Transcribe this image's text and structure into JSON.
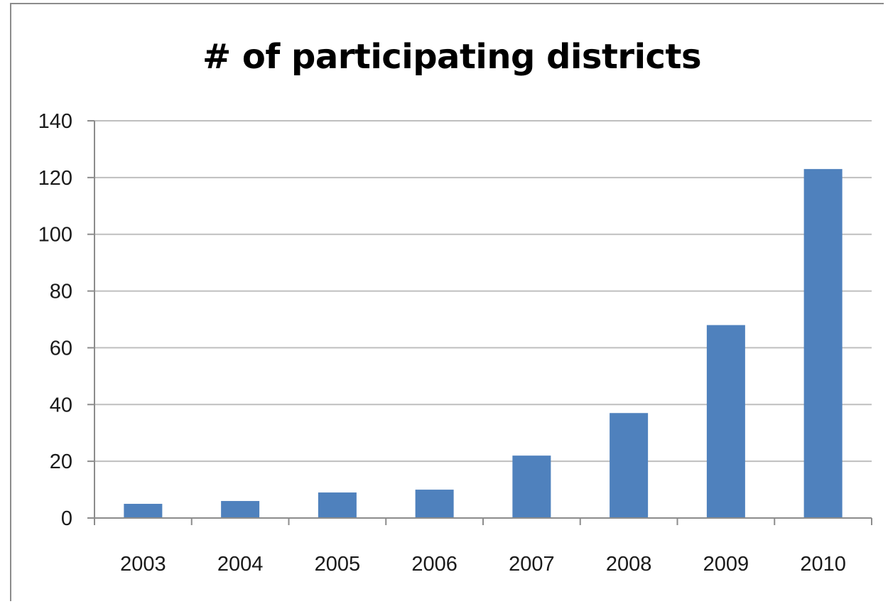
{
  "chart_data": {
    "type": "bar",
    "title": "# of participating districts",
    "xlabel": "",
    "ylabel": "",
    "categories": [
      "2003",
      "2004",
      "2005",
      "2006",
      "2007",
      "2008",
      "2009",
      "2010"
    ],
    "values": [
      5,
      6,
      9,
      10,
      22,
      37,
      68,
      123
    ],
    "ylim": [
      0,
      140
    ],
    "yticks": [
      0,
      20,
      40,
      60,
      80,
      100,
      120,
      140
    ],
    "grid": true,
    "legend": "none",
    "bar_color": "#4f81bd",
    "grid_color": "#bfbfbf"
  }
}
